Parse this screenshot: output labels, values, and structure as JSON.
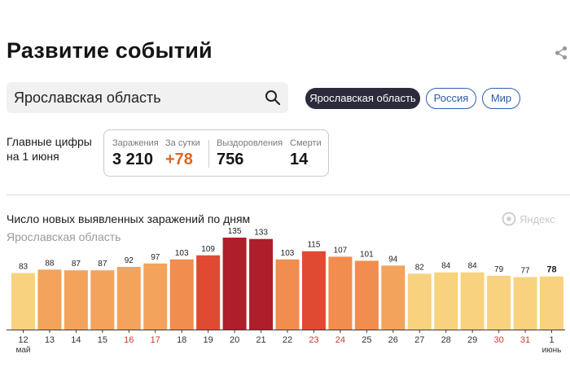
{
  "header": {
    "title": "Развитие событий",
    "share_icon": "share-icon"
  },
  "search": {
    "value": "Ярославская область",
    "icon": "search-icon"
  },
  "region_tabs": [
    {
      "label": "Ярославская область",
      "active": true
    },
    {
      "label": "Россия",
      "active": false
    },
    {
      "label": "Мир",
      "active": false
    }
  ],
  "summary": {
    "label_line1": "Главные цифры",
    "label_line2": "на 1 июня",
    "stats": [
      {
        "caption": "Заражения",
        "value": "3 210"
      },
      {
        "caption": "За сутки",
        "value": "+78"
      },
      {
        "caption": "Выздоровления",
        "value": "756"
      },
      {
        "caption": "Смерти",
        "value": "14"
      }
    ]
  },
  "watermark": "Яндекс",
  "colors": {
    "accent_orange": "#e0661f",
    "bar_dark_red": "#ae1f2b",
    "bar_red": "#e04a32",
    "bar_orange": "#f08d4f",
    "bar_light_orange": "#f3a35c",
    "bar_yellow": "#f8d27f",
    "weekend_label": "#cc3b2a",
    "weekday_label": "#333333"
  },
  "chart_data": {
    "type": "bar",
    "title": "Число новых выявленных заражений по дням",
    "subtitle": "Ярославская область",
    "categories": [
      "12",
      "13",
      "14",
      "15",
      "16",
      "17",
      "18",
      "19",
      "20",
      "21",
      "22",
      "23",
      "24",
      "25",
      "26",
      "27",
      "28",
      "29",
      "30",
      "31",
      "1"
    ],
    "month_labels": {
      "0": "май",
      "20": "июнь"
    },
    "weekend_indices": [
      4,
      5,
      11,
      12,
      18,
      19
    ],
    "values": [
      83,
      88,
      87,
      87,
      92,
      97,
      103,
      109,
      135,
      133,
      103,
      115,
      107,
      101,
      94,
      82,
      84,
      84,
      79,
      77,
      78
    ],
    "highlight_last": true,
    "ylim": [
      0,
      140
    ]
  }
}
